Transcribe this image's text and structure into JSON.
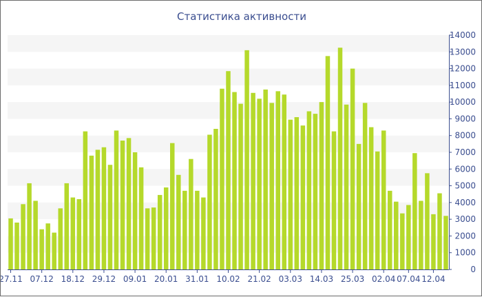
{
  "chart_data": {
    "type": "bar",
    "title": "Статистика активности",
    "ylim": [
      0,
      14000
    ],
    "y_ticks": [
      0,
      1000,
      2000,
      3000,
      4000,
      5000,
      6000,
      7000,
      8000,
      9000,
      10000,
      11000,
      12000,
      13000,
      14000
    ],
    "x_tick_labels": [
      "27.11",
      "07.12",
      "18.12",
      "29.12",
      "09.01",
      "20.01",
      "31.01",
      "10.02",
      "21.02",
      "03.03",
      "14.03",
      "25.03",
      "02.04",
      "07.04",
      "12.04"
    ],
    "x_tick_bar_index": [
      0,
      5,
      10,
      15,
      20,
      25,
      30,
      35,
      40,
      45,
      50,
      55,
      60,
      64,
      68
    ],
    "grid": "horizontal bands",
    "legend": "none",
    "bar_color": "#b5d92b",
    "band_color": "#f5f5f5",
    "axis_color": "#3a4d8f",
    "values": [
      3050,
      2800,
      3900,
      5150,
      4100,
      2400,
      2750,
      2200,
      3650,
      5150,
      4300,
      4200,
      8250,
      6800,
      7150,
      7300,
      6250,
      8300,
      7700,
      7850,
      7000,
      6100,
      3650,
      3700,
      4450,
      4900,
      7550,
      5650,
      4700,
      6600,
      4700,
      4300,
      8050,
      8400,
      10800,
      11850,
      10600,
      9900,
      13100,
      10550,
      10200,
      10750,
      9950,
      10650,
      10450,
      8950,
      9100,
      8600,
      9450,
      9300,
      10000,
      12750,
      8250,
      13250,
      9850,
      12000,
      7500,
      9950,
      8500,
      7050,
      8300,
      4700,
      4050,
      3350,
      3850,
      6950,
      4100,
      5750,
      3300,
      4550,
      3200
    ]
  }
}
